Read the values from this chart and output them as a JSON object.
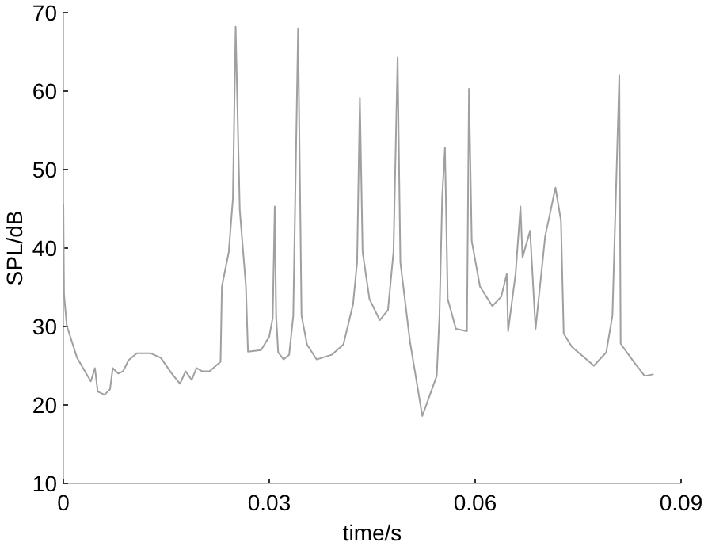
{
  "chart_data": {
    "type": "line",
    "xlabel": "time/s",
    "ylabel": "SPL/dB",
    "xlim": [
      0,
      0.09
    ],
    "ylim": [
      10,
      70
    ],
    "xticks": [
      0,
      0.03,
      0.06,
      0.09
    ],
    "yticks": [
      10,
      20,
      30,
      40,
      50,
      60,
      70
    ],
    "marker": "none",
    "line_style": "solid",
    "series": [
      {
        "color": "#a0a0a0",
        "x": [
          0,
          0.0001,
          0.0005,
          0.002,
          0.004,
          0.0046,
          0.005,
          0.006,
          0.0068,
          0.0072,
          0.008,
          0.0087,
          0.0095,
          0.0107,
          0.0127,
          0.0142,
          0.0158,
          0.017,
          0.0178,
          0.0187,
          0.0194,
          0.0202,
          0.0213,
          0.0229,
          0.0231,
          0.0241,
          0.0247,
          0.0251,
          0.0257,
          0.0266,
          0.0269,
          0.0288,
          0.03,
          0.0305,
          0.0308,
          0.031,
          0.0313,
          0.0321,
          0.0329,
          0.0335,
          0.0342,
          0.0347,
          0.0355,
          0.0369,
          0.0391,
          0.0408,
          0.0422,
          0.0428,
          0.0432,
          0.0436,
          0.0446,
          0.0461,
          0.0473,
          0.0481,
          0.0487,
          0.0491,
          0.0505,
          0.0523,
          0.0544,
          0.0548,
          0.0552,
          0.0556,
          0.056,
          0.0572,
          0.0588,
          0.0591,
          0.0595,
          0.0607,
          0.0625,
          0.0638,
          0.0646,
          0.0648,
          0.0659,
          0.0666,
          0.0669,
          0.068,
          0.0688,
          0.0702,
          0.0717,
          0.0725,
          0.0729,
          0.0741,
          0.0773,
          0.0791,
          0.08,
          0.081,
          0.0812,
          0.0832,
          0.0847,
          0.0859
        ],
        "values": [
          45.6,
          34.1,
          30.1,
          26.0,
          23.0,
          24.7,
          21.7,
          21.3,
          22.0,
          24.7,
          24.0,
          24.3,
          25.7,
          26.6,
          26.6,
          26.0,
          24.0,
          22.7,
          24.3,
          23.2,
          24.7,
          24.3,
          24.3,
          25.5,
          35.1,
          39.5,
          46.3,
          68.2,
          44.9,
          35.1,
          26.8,
          27.0,
          28.7,
          31.1,
          45.3,
          31.4,
          26.7,
          25.8,
          26.4,
          31.4,
          68.0,
          31.4,
          27.7,
          25.8,
          26.4,
          27.7,
          32.8,
          38.2,
          59.1,
          39.5,
          33.5,
          30.8,
          32.1,
          39.5,
          64.3,
          38.2,
          28.1,
          18.6,
          23.7,
          31.4,
          46.6,
          52.8,
          33.5,
          29.7,
          29.4,
          60.3,
          40.9,
          35.1,
          32.6,
          33.8,
          36.7,
          29.4,
          36.8,
          45.3,
          38.8,
          42.2,
          29.7,
          41.5,
          47.7,
          43.5,
          29.1,
          27.4,
          25.0,
          26.7,
          31.4,
          62.0,
          27.8,
          25.4,
          23.7,
          23.9
        ]
      }
    ]
  }
}
